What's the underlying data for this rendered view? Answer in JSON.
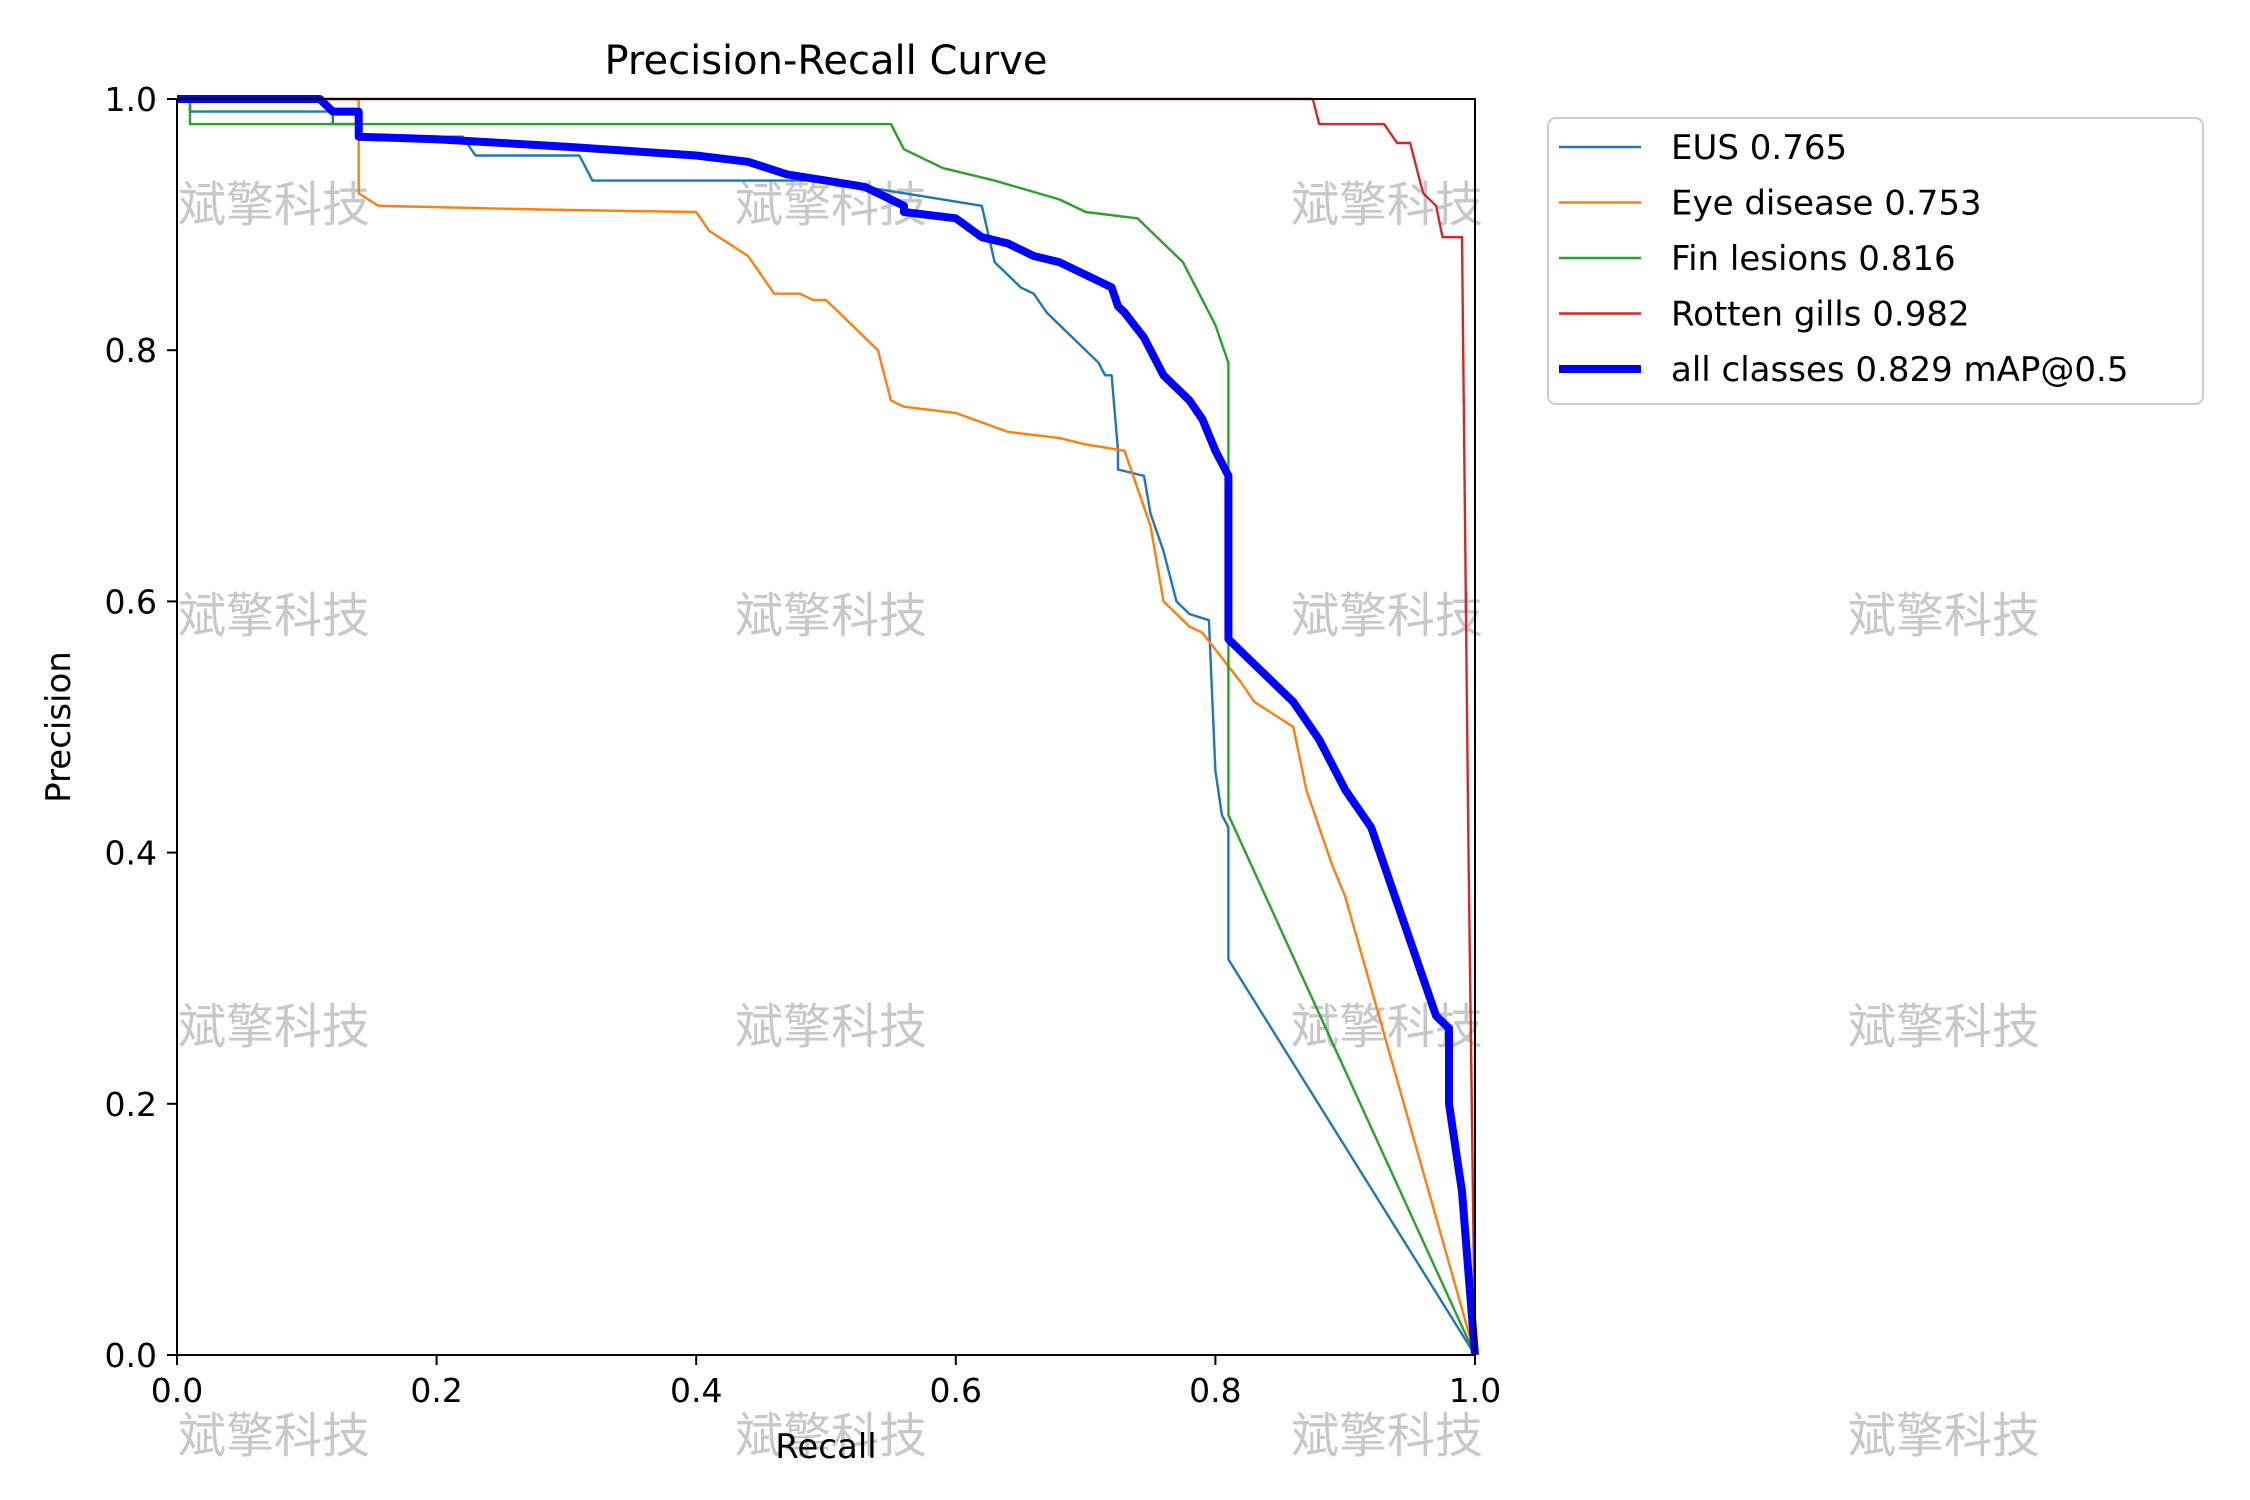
{
  "chart_data": {
    "type": "line",
    "title": "Precision-Recall Curve",
    "xlabel": "Recall",
    "ylabel": "Precision",
    "xlim": [
      0,
      1
    ],
    "ylim": [
      0,
      1
    ],
    "xticks": [
      "0.0",
      "0.2",
      "0.4",
      "0.6",
      "0.8",
      "1.0"
    ],
    "yticks": [
      "0.0",
      "0.2",
      "0.4",
      "0.6",
      "0.8",
      "1.0"
    ],
    "legend_position": "outside-right-top",
    "watermark": "斌擎科技",
    "series": [
      {
        "name": "EUS 0.765",
        "color": "#1f77b4",
        "x": [
          0,
          0.01,
          0.01,
          0.02,
          0.12,
          0.12,
          0.14,
          0.14,
          0.22,
          0.23,
          0.31,
          0.32,
          0.5,
          0.56,
          0.62,
          0.63,
          0.64,
          0.65,
          0.66,
          0.67,
          0.68,
          0.69,
          0.7,
          0.71,
          0.715,
          0.72,
          0.725,
          0.725,
          0.745,
          0.75,
          0.76,
          0.77,
          0.78,
          0.795,
          0.8,
          0.805,
          0.81,
          0.81,
          1.0
        ],
        "y": [
          1.0,
          1.0,
          0.99,
          0.99,
          0.99,
          0.98,
          0.98,
          0.97,
          0.97,
          0.955,
          0.955,
          0.935,
          0.935,
          0.925,
          0.915,
          0.87,
          0.86,
          0.85,
          0.845,
          0.83,
          0.82,
          0.81,
          0.8,
          0.79,
          0.78,
          0.78,
          0.72,
          0.705,
          0.7,
          0.67,
          0.64,
          0.6,
          0.59,
          0.585,
          0.465,
          0.43,
          0.42,
          0.315,
          0.0
        ]
      },
      {
        "name": "Eye disease 0.753",
        "color": "#ff7f0e",
        "x": [
          0,
          0.14,
          0.14,
          0.155,
          0.28,
          0.4,
          0.41,
          0.44,
          0.45,
          0.46,
          0.48,
          0.49,
          0.5,
          0.53,
          0.54,
          0.55,
          0.56,
          0.6,
          0.64,
          0.68,
          0.7,
          0.73,
          0.75,
          0.76,
          0.78,
          0.79,
          0.82,
          0.83,
          0.86,
          0.87,
          0.88,
          0.89,
          0.9,
          1.0
        ],
        "y": [
          1.0,
          1.0,
          0.925,
          0.915,
          0.912,
          0.91,
          0.895,
          0.875,
          0.86,
          0.845,
          0.845,
          0.84,
          0.84,
          0.81,
          0.8,
          0.76,
          0.755,
          0.75,
          0.735,
          0.73,
          0.725,
          0.72,
          0.66,
          0.6,
          0.58,
          0.575,
          0.535,
          0.52,
          0.5,
          0.45,
          0.42,
          0.39,
          0.365,
          0.0
        ]
      },
      {
        "name": "Fin lesions 0.816",
        "color": "#2ca02c",
        "x": [
          0,
          0.01,
          0.01,
          0.55,
          0.56,
          0.59,
          0.63,
          0.68,
          0.7,
          0.74,
          0.775,
          0.8,
          0.81,
          0.81,
          1.0
        ],
        "y": [
          1.0,
          1.0,
          0.98,
          0.98,
          0.96,
          0.945,
          0.935,
          0.92,
          0.91,
          0.905,
          0.87,
          0.82,
          0.79,
          0.43,
          0.0
        ]
      },
      {
        "name": "Rotten gills 0.982",
        "color": "#d62728",
        "x": [
          0,
          0.875,
          0.88,
          0.93,
          0.94,
          0.95,
          0.96,
          0.97,
          0.975,
          0.99,
          0.995,
          1.0
        ],
        "y": [
          1.0,
          1.0,
          0.98,
          0.98,
          0.965,
          0.965,
          0.925,
          0.915,
          0.89,
          0.89,
          0.4,
          0.0
        ]
      },
      {
        "name": "all classes 0.829 mAP@0.5",
        "color": "#0000ff",
        "x": [
          0,
          0.11,
          0.12,
          0.14,
          0.14,
          0.2,
          0.3,
          0.4,
          0.44,
          0.47,
          0.5,
          0.53,
          0.55,
          0.56,
          0.56,
          0.6,
          0.62,
          0.64,
          0.66,
          0.68,
          0.7,
          0.72,
          0.725,
          0.73,
          0.745,
          0.75,
          0.76,
          0.77,
          0.78,
          0.79,
          0.8,
          0.805,
          0.81,
          0.81,
          0.83,
          0.86,
          0.88,
          0.89,
          0.9,
          0.92,
          0.94,
          0.96,
          0.97,
          0.98,
          0.98,
          0.99,
          1.0
        ],
        "y": [
          1.0,
          1.0,
          0.99,
          0.99,
          0.97,
          0.968,
          0.962,
          0.955,
          0.95,
          0.94,
          0.935,
          0.93,
          0.92,
          0.915,
          0.91,
          0.905,
          0.89,
          0.885,
          0.875,
          0.87,
          0.86,
          0.85,
          0.835,
          0.83,
          0.81,
          0.8,
          0.78,
          0.77,
          0.76,
          0.745,
          0.72,
          0.71,
          0.7,
          0.57,
          0.55,
          0.52,
          0.49,
          0.47,
          0.45,
          0.42,
          0.36,
          0.3,
          0.27,
          0.26,
          0.2,
          0.13,
          0.0
        ]
      }
    ]
  }
}
